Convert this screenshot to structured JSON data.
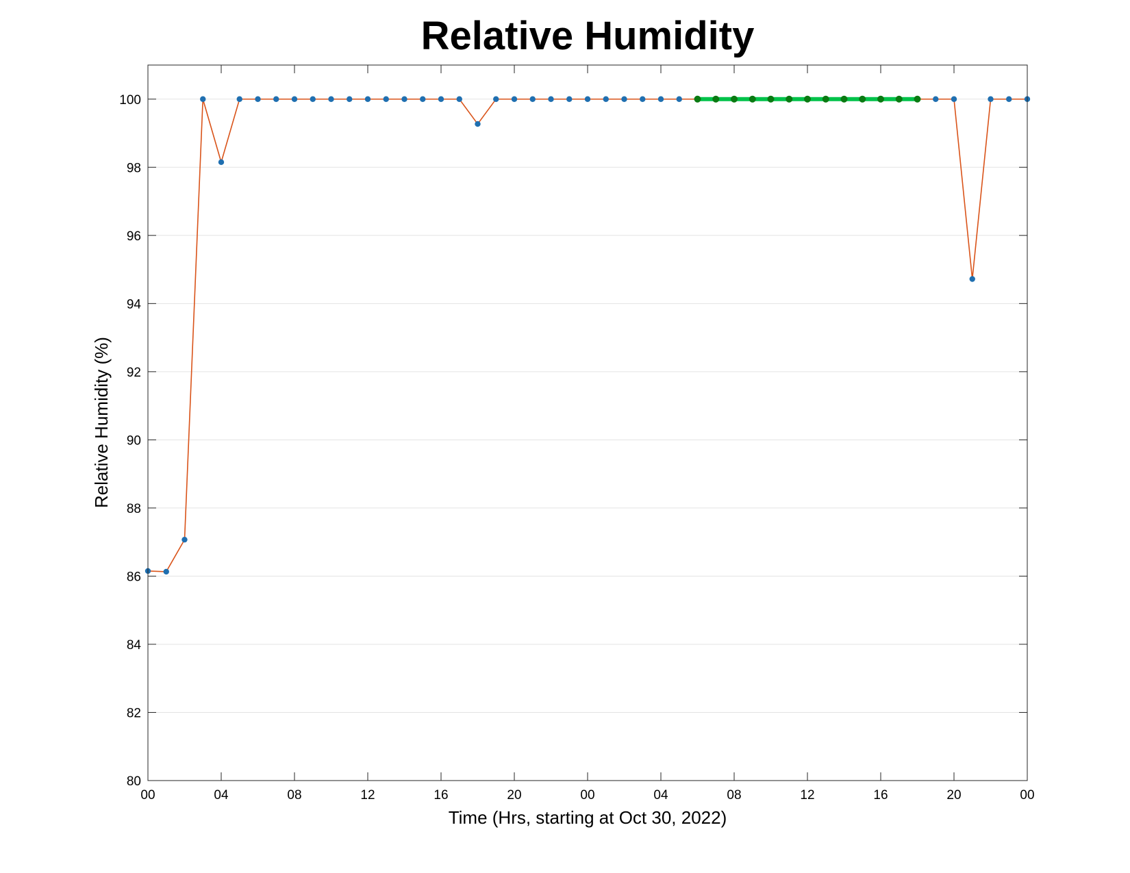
{
  "chart_data": {
    "type": "line",
    "title": "Relative Humidity",
    "xlabel": "Time (Hrs, starting at Oct 30, 2022)",
    "ylabel": "Relative Humidity (%)",
    "x_unit": "hours",
    "xlim": [
      0,
      48
    ],
    "ylim": [
      80,
      101
    ],
    "x_tick_values": [
      0,
      4,
      8,
      12,
      16,
      20,
      24,
      28,
      32,
      36,
      40,
      44,
      48
    ],
    "x_tick_labels": [
      "00",
      "04",
      "08",
      "12",
      "16",
      "20",
      "00",
      "04",
      "08",
      "12",
      "16",
      "20",
      "00"
    ],
    "y_ticks": [
      80,
      82,
      84,
      86,
      88,
      90,
      92,
      94,
      96,
      98,
      100
    ],
    "grid": "horizontal",
    "x": [
      0,
      1,
      2,
      3,
      4,
      5,
      6,
      7,
      8,
      9,
      10,
      11,
      12,
      13,
      14,
      15,
      16,
      17,
      18,
      19,
      20,
      21,
      22,
      23,
      24,
      25,
      26,
      27,
      28,
      29,
      30,
      31,
      32,
      33,
      34,
      35,
      36,
      37,
      38,
      39,
      40,
      41,
      42,
      43,
      44,
      45,
      46,
      47,
      48
    ],
    "series": [
      {
        "values": [
          86.15,
          86.13,
          87.07,
          100,
          98.15,
          100,
          100,
          100,
          100,
          100,
          100,
          100,
          100,
          100,
          100,
          100,
          100,
          100,
          99.27,
          100,
          100,
          100,
          100,
          100,
          100,
          100,
          100,
          100,
          100,
          100,
          100,
          100,
          100,
          100,
          100,
          100,
          100,
          100,
          100,
          100,
          100,
          100,
          100,
          100,
          100,
          94.72,
          100,
          100,
          100
        ],
        "line_color": "#d95319",
        "marker_color": "#1f6fb0"
      }
    ],
    "highlight": {
      "x_start": 30,
      "x_end": 42,
      "value": 100,
      "line_color": "#00c24a",
      "marker_color": "#0a7a12"
    }
  }
}
